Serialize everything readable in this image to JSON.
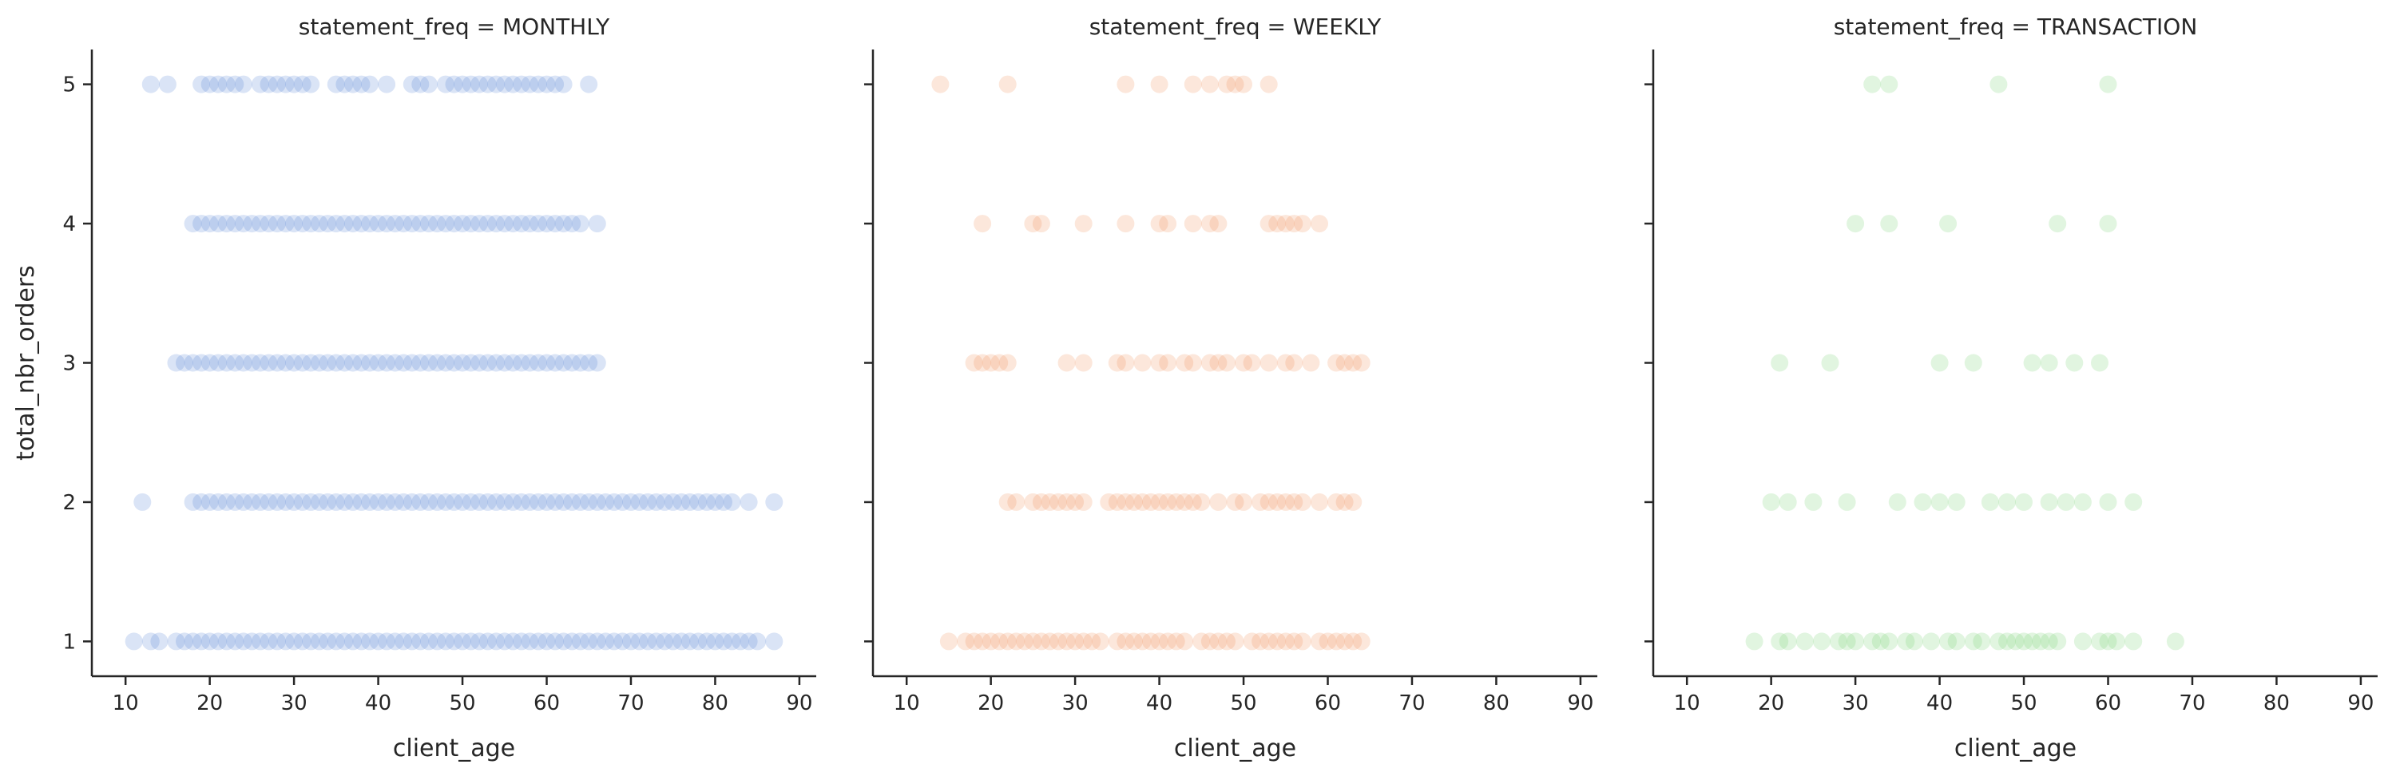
{
  "chart_data": [
    {
      "type": "scatter",
      "title": "statement_freq = MONTHLY",
      "xlabel": "client_age",
      "ylabel": "total_nbr_orders",
      "xlim": [
        6,
        92
      ],
      "ylim": [
        0.75,
        5.25
      ],
      "xticks": [
        10,
        20,
        30,
        40,
        50,
        60,
        70,
        80,
        90
      ],
      "yticks": [
        1,
        2,
        3,
        4,
        5
      ],
      "color": "#4878d0",
      "point_alpha": 0.2,
      "grid": false,
      "series": [
        {
          "points": [
            {
              "y": 5,
              "x": [
                13,
                15,
                19,
                20,
                21,
                22,
                23,
                24,
                26,
                27,
                28,
                29,
                30,
                31,
                32,
                35,
                36,
                37,
                38,
                39,
                41,
                44,
                45,
                46,
                48,
                49,
                50,
                51,
                52,
                53,
                54,
                55,
                56,
                57,
                58,
                59,
                60,
                61,
                62,
                65
              ]
            },
            {
              "y": 4,
              "x": [
                18,
                19,
                20,
                21,
                22,
                23,
                24,
                25,
                26,
                27,
                28,
                29,
                30,
                31,
                32,
                33,
                34,
                35,
                36,
                37,
                38,
                39,
                40,
                41,
                42,
                43,
                44,
                45,
                46,
                47,
                48,
                49,
                50,
                51,
                52,
                53,
                54,
                55,
                56,
                57,
                58,
                59,
                60,
                61,
                62,
                63,
                64,
                66
              ]
            },
            {
              "y": 3,
              "x": [
                16,
                17,
                18,
                19,
                20,
                21,
                22,
                23,
                24,
                25,
                26,
                27,
                28,
                29,
                30,
                31,
                32,
                33,
                34,
                35,
                36,
                37,
                38,
                39,
                40,
                41,
                42,
                43,
                44,
                45,
                46,
                47,
                48,
                49,
                50,
                51,
                52,
                53,
                54,
                55,
                56,
                57,
                58,
                59,
                60,
                61,
                62,
                63,
                64,
                65,
                66
              ]
            },
            {
              "y": 2,
              "x": [
                12,
                18,
                19,
                20,
                21,
                22,
                23,
                24,
                25,
                26,
                27,
                28,
                29,
                30,
                31,
                32,
                33,
                34,
                35,
                36,
                37,
                38,
                39,
                40,
                41,
                42,
                43,
                44,
                45,
                46,
                47,
                48,
                49,
                50,
                51,
                52,
                53,
                54,
                55,
                56,
                57,
                58,
                59,
                60,
                61,
                62,
                63,
                64,
                65,
                66,
                67,
                68,
                69,
                70,
                71,
                72,
                73,
                74,
                75,
                76,
                77,
                78,
                79,
                80,
                81,
                82,
                84,
                87
              ]
            },
            {
              "y": 1,
              "x": [
                11,
                13,
                14,
                16,
                17,
                18,
                19,
                20,
                21,
                22,
                23,
                24,
                25,
                26,
                27,
                28,
                29,
                30,
                31,
                32,
                33,
                34,
                35,
                36,
                37,
                38,
                39,
                40,
                41,
                42,
                43,
                44,
                45,
                46,
                47,
                48,
                49,
                50,
                51,
                52,
                53,
                54,
                55,
                56,
                57,
                58,
                59,
                60,
                61,
                62,
                63,
                64,
                65,
                66,
                67,
                68,
                69,
                70,
                71,
                72,
                73,
                74,
                75,
                76,
                77,
                78,
                79,
                80,
                81,
                82,
                83,
                84,
                85,
                87
              ]
            }
          ]
        }
      ]
    },
    {
      "type": "scatter",
      "title": "statement_freq = WEEKLY",
      "xlabel": "client_age",
      "ylabel": "",
      "xlim": [
        6,
        92
      ],
      "ylim": [
        0.75,
        5.25
      ],
      "xticks": [
        10,
        20,
        30,
        40,
        50,
        60,
        70,
        80,
        90
      ],
      "yticks": [
        1,
        2,
        3,
        4,
        5
      ],
      "color": "#ee854a",
      "point_alpha": 0.2,
      "grid": false,
      "series": [
        {
          "points": [
            {
              "y": 5,
              "x": [
                14,
                22,
                36,
                40,
                44,
                46,
                48,
                49,
                50,
                53
              ]
            },
            {
              "y": 4,
              "x": [
                19,
                25,
                26,
                31,
                36,
                40,
                41,
                44,
                46,
                47,
                53,
                54,
                55,
                56,
                57,
                59
              ]
            },
            {
              "y": 3,
              "x": [
                18,
                19,
                20,
                21,
                22,
                29,
                31,
                35,
                36,
                38,
                40,
                41,
                43,
                44,
                46,
                47,
                48,
                50,
                51,
                53,
                55,
                56,
                58,
                61,
                62,
                63,
                64
              ]
            },
            {
              "y": 2,
              "x": [
                22,
                23,
                25,
                26,
                27,
                28,
                29,
                30,
                31,
                34,
                35,
                36,
                37,
                38,
                39,
                40,
                41,
                42,
                43,
                44,
                45,
                47,
                49,
                50,
                52,
                53,
                54,
                55,
                56,
                57,
                59,
                61,
                62,
                63
              ]
            },
            {
              "y": 1,
              "x": [
                15,
                17,
                18,
                19,
                20,
                21,
                22,
                23,
                24,
                25,
                26,
                27,
                28,
                29,
                30,
                31,
                32,
                33,
                35,
                36,
                37,
                38,
                39,
                40,
                41,
                42,
                43,
                45,
                46,
                47,
                48,
                49,
                51,
                52,
                53,
                54,
                55,
                56,
                57,
                59,
                60,
                61,
                62,
                63,
                64
              ]
            }
          ]
        }
      ]
    },
    {
      "type": "scatter",
      "title": "statement_freq = TRANSACTION",
      "xlabel": "client_age",
      "ylabel": "",
      "xlim": [
        6,
        92
      ],
      "ylim": [
        0.75,
        5.25
      ],
      "xticks": [
        10,
        20,
        30,
        40,
        50,
        60,
        70,
        80,
        90
      ],
      "yticks": [
        1,
        2,
        3,
        4,
        5
      ],
      "color": "#6acc64",
      "point_alpha": 0.2,
      "grid": false,
      "series": [
        {
          "points": [
            {
              "y": 5,
              "x": [
                32,
                34,
                47,
                60
              ]
            },
            {
              "y": 4,
              "x": [
                30,
                34,
                41,
                54,
                60
              ]
            },
            {
              "y": 3,
              "x": [
                21,
                27,
                40,
                44,
                51,
                53,
                56,
                59
              ]
            },
            {
              "y": 2,
              "x": [
                20,
                22,
                25,
                29,
                35,
                38,
                40,
                42,
                46,
                48,
                50,
                53,
                55,
                57,
                60,
                63
              ]
            },
            {
              "y": 1,
              "x": [
                18,
                21,
                22,
                24,
                26,
                28,
                29,
                30,
                32,
                33,
                34,
                36,
                37,
                39,
                41,
                42,
                44,
                45,
                47,
                48,
                49,
                50,
                51,
                52,
                53,
                54,
                57,
                59,
                60,
                61,
                63,
                68
              ]
            }
          ]
        }
      ]
    }
  ]
}
